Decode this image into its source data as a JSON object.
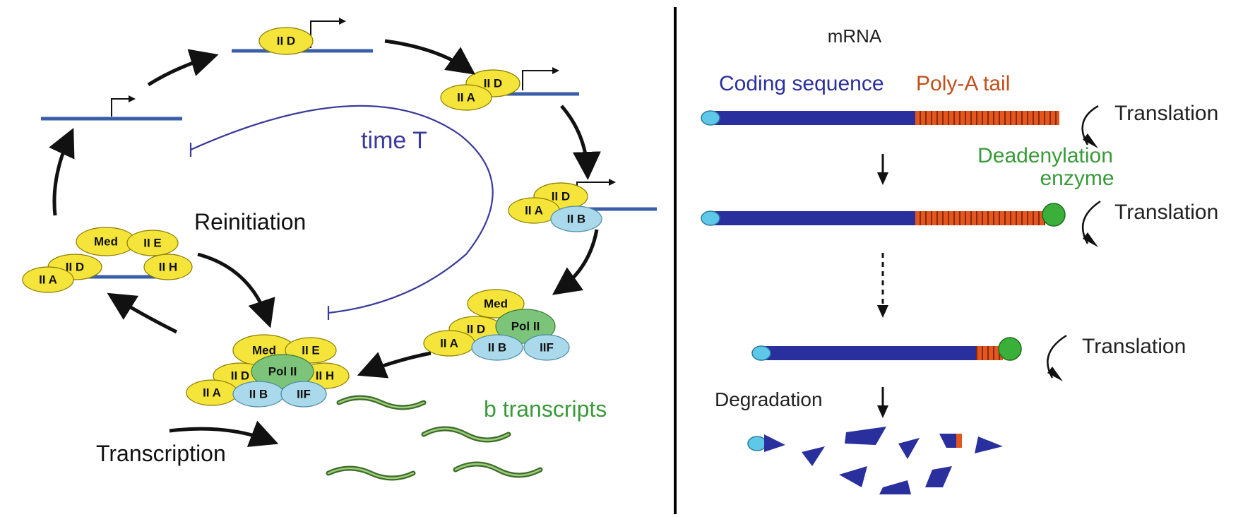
{
  "left_panel": {
    "cycle_label": "time T",
    "reinitiation": "Reinitiation",
    "transcription": "Transcription",
    "transcripts": "b transcripts",
    "factors": {
      "IID": "II D",
      "IIA": "II A",
      "IIB": "II B",
      "IIE": "II E",
      "IIH": "II H",
      "IIF": "IIF",
      "Med": "Med",
      "PolII": "Pol II"
    }
  },
  "right_panel": {
    "title": "mRNA",
    "coding": "Coding sequence",
    "polyA": "Poly-A tail",
    "translation": "Translation",
    "deadenylation_line1": "Deadenylation",
    "deadenylation_line2": "enzyme",
    "degradation": "Degradation"
  },
  "colors": {
    "dna": "#3a5fa8",
    "coding": "#2a2f9e",
    "polyA": "#e2571f",
    "cap": "#5ec8e8",
    "timeT": "#3a3a9a",
    "green_text": "#3a9a3a",
    "orange_text": "#c0501a"
  }
}
